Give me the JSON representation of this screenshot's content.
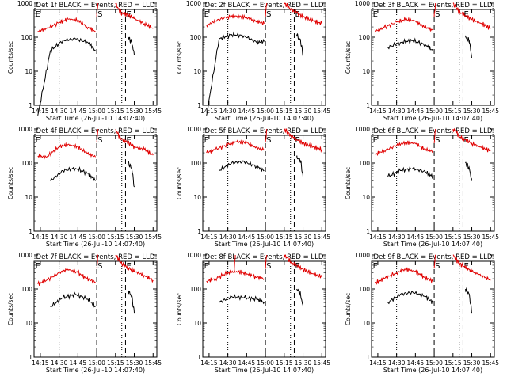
{
  "colors": {
    "events": "#000000",
    "lld": "#e00000",
    "axis": "#000000"
  },
  "axes": {
    "ylabel": "Counts/sec",
    "xlabel": "Start Time (26-Jul-10 14:07:40)",
    "xticks": [
      "14:15",
      "14:30",
      "14:45",
      "15:00",
      "15:15",
      "15:30",
      "15:45"
    ],
    "yticks": [
      "1",
      "10",
      "100",
      "1000"
    ],
    "yscale": "log",
    "ylim": [
      1,
      1000
    ]
  },
  "markers": {
    "dotted": [
      "14:30",
      "15:20"
    ],
    "dashed": [
      "15:00",
      "15:23"
    ]
  },
  "chart_data": [
    {
      "type": "line",
      "title": "Det 1f BLACK = Events, RED = LLD",
      "markers_text": [
        "E",
        "S",
        "E"
      ],
      "series": [
        {
          "name": "Events",
          "color": "#000000",
          "segments": [
            {
              "x": [
                "14:13",
                "14:23",
                "14:33",
                "14:43",
                "14:53",
                "14:59"
              ],
              "y": [
                0.5,
                40,
                80,
                90,
                70,
                40
              ]
            },
            {
              "x": [
                "15:25",
                "15:26",
                "15:28",
                "15:30"
              ],
              "y": [
                100,
                90,
                70,
                30
              ]
            }
          ]
        },
        {
          "name": "LLD",
          "color": "#e00000",
          "segments": [
            {
              "x": [
                "14:13",
                "14:20",
                "14:30",
                "14:37",
                "14:45",
                "14:52",
                "14:59"
              ],
              "y": [
                150,
                180,
                270,
                340,
                320,
                200,
                150
              ]
            },
            {
              "x": [
                "15:00",
                "15:01"
              ],
              "y": [
                400,
                1000
              ]
            },
            {
              "x": [
                "15:15",
                "15:18",
                "15:20",
                "15:25",
                "15:30",
                "15:38",
                "15:45"
              ],
              "y": [
                1000,
                600,
                500,
                450,
                350,
                250,
                180
              ]
            }
          ]
        }
      ]
    },
    {
      "type": "line",
      "title": "Det 2f BLACK = Events, RED = LLD",
      "markers_text": [
        "E",
        "S",
        "E"
      ],
      "series": [
        {
          "name": "Events",
          "color": "#000000",
          "segments": [
            {
              "x": [
                "14:13",
                "14:23",
                "14:33",
                "14:43",
                "14:53",
                "14:59"
              ],
              "y": [
                0.5,
                90,
                120,
                110,
                70,
                75
              ]
            },
            {
              "x": [
                "15:25",
                "15:26",
                "15:28",
                "15:30"
              ],
              "y": [
                120,
                100,
                80,
                30
              ]
            }
          ]
        },
        {
          "name": "LLD",
          "color": "#e00000",
          "segments": [
            {
              "x": [
                "14:13",
                "14:20",
                "14:30",
                "14:37",
                "14:45",
                "14:52",
                "14:59"
              ],
              "y": [
                220,
                300,
                400,
                420,
                380,
                300,
                250
              ]
            },
            {
              "x": [
                "15:00",
                "15:01"
              ],
              "y": [
                400,
                1000
              ]
            },
            {
              "x": [
                "15:15",
                "15:18",
                "15:20",
                "15:25",
                "15:30",
                "15:38",
                "15:45"
              ],
              "y": [
                1000,
                800,
                650,
                520,
                400,
                300,
                250
              ]
            }
          ]
        }
      ]
    },
    {
      "type": "line",
      "title": "Det 3f BLACK = Events, RED = LLD",
      "markers_text": [
        "E",
        "S",
        "E"
      ],
      "series": [
        {
          "name": "Events",
          "color": "#000000",
          "segments": [
            {
              "x": [
                "14:23",
                "14:33",
                "14:43",
                "14:53",
                "14:59"
              ],
              "y": [
                50,
                70,
                80,
                60,
                40
              ]
            },
            {
              "x": [
                "15:25",
                "15:26",
                "15:28",
                "15:30"
              ],
              "y": [
                100,
                90,
                80,
                25
              ]
            }
          ]
        },
        {
          "name": "LLD",
          "color": "#e00000",
          "segments": [
            {
              "x": [
                "14:13",
                "14:20",
                "14:30",
                "14:37",
                "14:45",
                "14:52",
                "14:59"
              ],
              "y": [
                150,
                190,
                280,
                330,
                300,
                200,
                160
              ]
            },
            {
              "x": [
                "15:00",
                "15:01"
              ],
              "y": [
                400,
                1000
              ]
            },
            {
              "x": [
                "15:15",
                "15:18",
                "15:20",
                "15:25",
                "15:30",
                "15:38",
                "15:45"
              ],
              "y": [
                1000,
                700,
                550,
                430,
                330,
                250,
                180
              ]
            }
          ]
        }
      ]
    },
    {
      "type": "line",
      "title": "Det 4f BLACK = Events, RED = LLD",
      "markers_text": [
        "E",
        "S",
        "E"
      ],
      "series": [
        {
          "name": "Events",
          "color": "#000000",
          "segments": [
            {
              "x": [
                "14:23",
                "14:33",
                "14:43",
                "14:53",
                "14:59"
              ],
              "y": [
                30,
                60,
                70,
                50,
                30
              ]
            },
            {
              "x": [
                "15:25",
                "15:26",
                "15:28",
                "15:30"
              ],
              "y": [
                100,
                90,
                70,
                20
              ]
            }
          ]
        },
        {
          "name": "LLD",
          "color": "#e00000",
          "segments": [
            {
              "x": [
                "14:13",
                "14:20",
                "14:30",
                "14:37",
                "14:45",
                "14:52",
                "14:59"
              ],
              "y": [
                160,
                150,
                300,
                350,
                300,
                200,
                150
              ]
            },
            {
              "x": [
                "15:00",
                "15:01"
              ],
              "y": [
                400,
                1000
              ]
            },
            {
              "x": [
                "15:15",
                "15:18",
                "15:20",
                "15:25",
                "15:30",
                "15:38",
                "15:45"
              ],
              "y": [
                1000,
                600,
                500,
                400,
                300,
                250,
                170
              ]
            }
          ]
        }
      ]
    },
    {
      "type": "line",
      "title": "Det 5f BLACK = Events, RED = LLD",
      "markers_text": [
        "E",
        "S",
        "E"
      ],
      "series": [
        {
          "name": "Events",
          "color": "#000000",
          "segments": [
            {
              "x": [
                "14:23",
                "14:33",
                "14:43",
                "14:53",
                "14:59"
              ],
              "y": [
                60,
                100,
                110,
                80,
                60
              ]
            },
            {
              "x": [
                "15:25",
                "15:26",
                "15:28",
                "15:30"
              ],
              "y": [
                150,
                140,
                120,
                40
              ]
            }
          ]
        },
        {
          "name": "LLD",
          "color": "#e00000",
          "segments": [
            {
              "x": [
                "14:13",
                "14:20",
                "14:30",
                "14:37",
                "14:45",
                "14:52",
                "14:59"
              ],
              "y": [
                200,
                250,
                350,
                420,
                400,
                280,
                250
              ]
            },
            {
              "x": [
                "15:00",
                "15:01"
              ],
              "y": [
                400,
                1000
              ]
            },
            {
              "x": [
                "15:15",
                "15:18",
                "15:20",
                "15:25",
                "15:30",
                "15:38",
                "15:45"
              ],
              "y": [
                1000,
                800,
                650,
                500,
                380,
                300,
                250
              ]
            }
          ]
        }
      ]
    },
    {
      "type": "line",
      "title": "Det 6f BLACK = Events, RED = LLD",
      "markers_text": [
        "E",
        "S",
        "E"
      ],
      "series": [
        {
          "name": "Events",
          "color": "#000000",
          "segments": [
            {
              "x": [
                "14:23",
                "14:33",
                "14:43",
                "14:53",
                "14:59"
              ],
              "y": [
                40,
                60,
                70,
                55,
                40
              ]
            },
            {
              "x": [
                "15:25",
                "15:26",
                "15:28",
                "15:30"
              ],
              "y": [
                100,
                90,
                70,
                30
              ]
            }
          ]
        },
        {
          "name": "LLD",
          "color": "#e00000",
          "segments": [
            {
              "x": [
                "14:13",
                "14:20",
                "14:30",
                "14:37",
                "14:45",
                "14:52",
                "14:59"
              ],
              "y": [
                180,
                230,
                330,
                400,
                380,
                260,
                220
              ]
            },
            {
              "x": [
                "15:00",
                "15:01"
              ],
              "y": [
                400,
                1000
              ]
            },
            {
              "x": [
                "15:15",
                "15:18",
                "15:20",
                "15:25",
                "15:30",
                "15:38",
                "15:45"
              ],
              "y": [
                1000,
                800,
                600,
                480,
                380,
                280,
                230
              ]
            }
          ]
        }
      ]
    },
    {
      "type": "line",
      "title": "Det 7f BLACK = Events, RED = LLD",
      "markers_text": [
        "E",
        "S",
        "E"
      ],
      "series": [
        {
          "name": "Events",
          "color": "#000000",
          "segments": [
            {
              "x": [
                "14:23",
                "14:33",
                "14:43",
                "14:53",
                "14:59"
              ],
              "y": [
                30,
                55,
                70,
                50,
                30
              ]
            },
            {
              "x": [
                "15:25",
                "15:26",
                "15:28",
                "15:30"
              ],
              "y": [
                90,
                80,
                60,
                20
              ]
            }
          ]
        },
        {
          "name": "LLD",
          "color": "#e00000",
          "segments": [
            {
              "x": [
                "14:13",
                "14:20",
                "14:30",
                "14:37",
                "14:45",
                "14:52",
                "14:59"
              ],
              "y": [
                140,
                180,
                300,
                380,
                300,
                200,
                160
              ]
            },
            {
              "x": [
                "15:00",
                "15:01"
              ],
              "y": [
                400,
                1000
              ]
            },
            {
              "x": [
                "15:15",
                "15:18",
                "15:20",
                "15:25",
                "15:30",
                "15:38",
                "15:45"
              ],
              "y": [
                1000,
                700,
                550,
                420,
                330,
                250,
                180
              ]
            }
          ]
        }
      ]
    },
    {
      "type": "line",
      "title": "Det 8f BLACK = Events, RED = LLD",
      "markers_text": [
        "E",
        "S",
        "E"
      ],
      "series": [
        {
          "name": "Events",
          "color": "#000000",
          "segments": [
            {
              "x": [
                "14:23",
                "14:33",
                "14:43",
                "14:53",
                "14:59"
              ],
              "y": [
                40,
                60,
                55,
                50,
                40
              ]
            },
            {
              "x": [
                "15:25",
                "15:26",
                "15:28",
                "15:30"
              ],
              "y": [
                100,
                90,
                70,
                30
              ]
            }
          ]
        },
        {
          "name": "LLD",
          "color": "#e00000",
          "segments": [
            {
              "x": [
                "14:13",
                "14:20",
                "14:30",
                "14:37",
                "14:45",
                "14:52",
                "14:59"
              ],
              "y": [
                170,
                200,
                300,
                330,
                280,
                230,
                200
              ]
            },
            {
              "x": [
                "14:35",
                "14:36"
              ],
              "y": [
                300,
                1000
              ]
            },
            {
              "x": [
                "15:00",
                "15:01"
              ],
              "y": [
                400,
                1000
              ]
            },
            {
              "x": [
                "15:15",
                "15:18",
                "15:20",
                "15:25",
                "15:30",
                "15:38",
                "15:45"
              ],
              "y": [
                1000,
                800,
                600,
                480,
                380,
                280,
                230
              ]
            }
          ]
        }
      ]
    },
    {
      "type": "line",
      "title": "Det 9f BLACK = Events, RED = LLD",
      "markers_text": [
        "E",
        "S",
        "E"
      ],
      "series": [
        {
          "name": "Events",
          "color": "#000000",
          "segments": [
            {
              "x": [
                "14:23",
                "14:33",
                "14:43",
                "14:53",
                "14:59"
              ],
              "y": [
                40,
                70,
                80,
                60,
                40
              ]
            },
            {
              "x": [
                "15:25",
                "15:26",
                "15:28",
                "15:30"
              ],
              "y": [
                100,
                90,
                70,
                20
              ]
            }
          ]
        },
        {
          "name": "LLD",
          "color": "#e00000",
          "segments": [
            {
              "x": [
                "14:13",
                "14:20",
                "14:30",
                "14:37",
                "14:45",
                "14:52",
                "14:59"
              ],
              "y": [
                150,
                200,
                300,
                380,
                330,
                220,
                170
              ]
            },
            {
              "x": [
                "15:00",
                "15:01"
              ],
              "y": [
                400,
                1000
              ]
            },
            {
              "x": [
                "15:15",
                "15:18",
                "15:20",
                "15:25",
                "15:30",
                "15:38",
                "15:45"
              ],
              "y": [
                1000,
                700,
                560,
                430,
                330,
                250,
                180
              ]
            }
          ]
        }
      ]
    }
  ]
}
